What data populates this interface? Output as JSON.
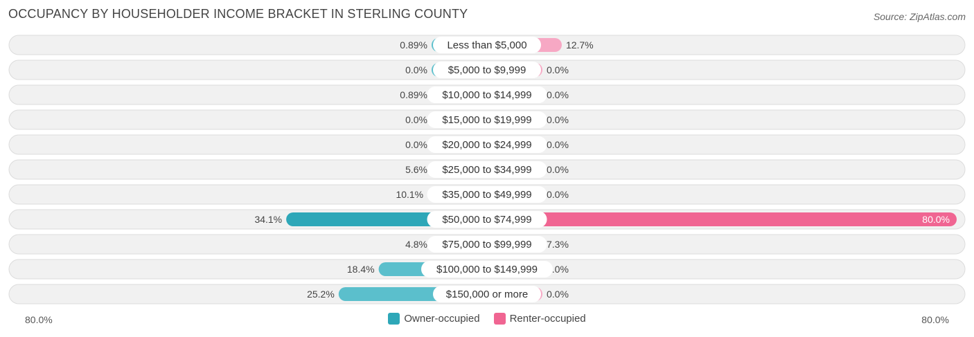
{
  "title": "OCCUPANCY BY HOUSEHOLDER INCOME BRACKET IN STERLING COUNTY",
  "source": "Source: ZipAtlas.com",
  "colors": {
    "owner": "#5bbfcc",
    "owner_strong": "#2ea7b8",
    "renter": "#f7a8c4",
    "renter_strong": "#f06592"
  },
  "chart_data": {
    "type": "bar",
    "orientation": "horizontal-diverging",
    "categories": [
      "Less than $5,000",
      "$5,000 to $9,999",
      "$10,000 to $14,999",
      "$15,000 to $19,999",
      "$20,000 to $24,999",
      "$25,000 to $34,999",
      "$35,000 to $49,999",
      "$50,000 to $74,999",
      "$75,000 to $99,999",
      "$100,000 to $149,999",
      "$150,000 or more"
    ],
    "series": [
      {
        "name": "Owner-occupied",
        "values": [
          0.89,
          0.0,
          0.89,
          0.0,
          0.0,
          5.6,
          10.1,
          34.1,
          4.8,
          18.4,
          25.2
        ],
        "labels": [
          "0.89%",
          "0.0%",
          "0.89%",
          "0.0%",
          "0.0%",
          "5.6%",
          "10.1%",
          "34.1%",
          "4.8%",
          "18.4%",
          "25.2%"
        ]
      },
      {
        "name": "Renter-occupied",
        "values": [
          12.7,
          0.0,
          0.0,
          0.0,
          0.0,
          0.0,
          0.0,
          80.0,
          7.3,
          0.0,
          0.0
        ],
        "labels": [
          "12.7%",
          "0.0%",
          "0.0%",
          "0.0%",
          "0.0%",
          "0.0%",
          "0.0%",
          "80.0%",
          "7.3%",
          "0.0%",
          "0.0%"
        ]
      }
    ],
    "axis_left_label": "80.0%",
    "axis_right_label": "80.0%",
    "xlim": [
      -80,
      80
    ],
    "legend_position": "bottom-center",
    "grid": false
  }
}
